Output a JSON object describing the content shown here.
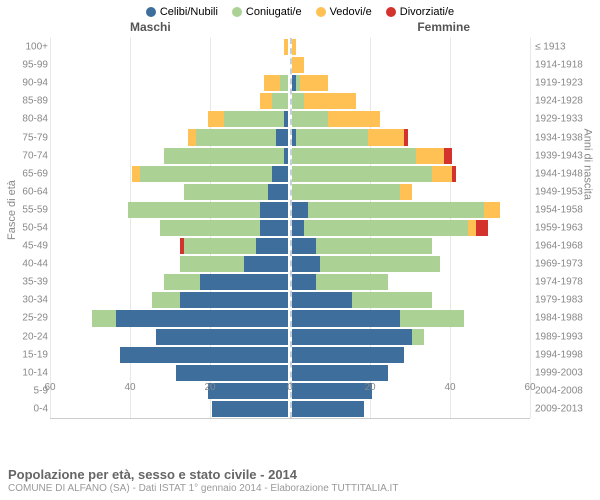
{
  "legend": {
    "items": [
      {
        "label": "Celibi/Nubili",
        "color": "#3d6e9c"
      },
      {
        "label": "Coniugati/e",
        "color": "#abd194"
      },
      {
        "label": "Vedovi/e",
        "color": "#ffc153"
      },
      {
        "label": "Divorziati/e",
        "color": "#d4322c"
      }
    ]
  },
  "gender_labels": {
    "male": "Maschi",
    "female": "Femmine"
  },
  "axis_titles": {
    "left": "Fasce di età",
    "right": "Anni di nascita"
  },
  "x_axis": {
    "max": 60,
    "ticks": [
      60,
      40,
      20,
      0,
      20,
      40,
      60
    ]
  },
  "colors": {
    "celibi": "#3d6e9c",
    "coniugati": "#abd194",
    "vedovi": "#ffc153",
    "divorziati": "#d4322c",
    "grid": "#e8e8e8",
    "center": "#c4cfdc"
  },
  "rows": [
    {
      "age": "100+",
      "birth": "≤ 1913",
      "m": [
        0,
        0,
        1,
        0
      ],
      "f": [
        0,
        0,
        1,
        0
      ]
    },
    {
      "age": "95-99",
      "birth": "1914-1918",
      "m": [
        0,
        0,
        0,
        0
      ],
      "f": [
        0,
        0,
        3,
        0
      ]
    },
    {
      "age": "90-94",
      "birth": "1919-1923",
      "m": [
        0,
        2,
        4,
        0
      ],
      "f": [
        1,
        1,
        7,
        0
      ]
    },
    {
      "age": "85-89",
      "birth": "1924-1928",
      "m": [
        0,
        4,
        3,
        0
      ],
      "f": [
        0,
        3,
        13,
        0
      ]
    },
    {
      "age": "80-84",
      "birth": "1929-1933",
      "m": [
        1,
        15,
        4,
        0
      ],
      "f": [
        0,
        9,
        13,
        0
      ]
    },
    {
      "age": "75-79",
      "birth": "1934-1938",
      "m": [
        3,
        20,
        2,
        0
      ],
      "f": [
        1,
        18,
        9,
        1
      ]
    },
    {
      "age": "70-74",
      "birth": "1939-1943",
      "m": [
        1,
        30,
        0,
        0
      ],
      "f": [
        0,
        31,
        7,
        2
      ]
    },
    {
      "age": "65-69",
      "birth": "1944-1948",
      "m": [
        4,
        33,
        2,
        0
      ],
      "f": [
        0,
        35,
        5,
        1
      ]
    },
    {
      "age": "60-64",
      "birth": "1949-1953",
      "m": [
        5,
        21,
        0,
        0
      ],
      "f": [
        0,
        27,
        3,
        0
      ]
    },
    {
      "age": "55-59",
      "birth": "1954-1958",
      "m": [
        7,
        33,
        0,
        0
      ],
      "f": [
        4,
        44,
        4,
        0
      ]
    },
    {
      "age": "50-54",
      "birth": "1959-1963",
      "m": [
        7,
        25,
        0,
        0
      ],
      "f": [
        3,
        41,
        2,
        3
      ]
    },
    {
      "age": "45-49",
      "birth": "1964-1968",
      "m": [
        8,
        18,
        0,
        1
      ],
      "f": [
        6,
        29,
        0,
        0
      ]
    },
    {
      "age": "40-44",
      "birth": "1969-1973",
      "m": [
        11,
        16,
        0,
        0
      ],
      "f": [
        7,
        30,
        0,
        0
      ]
    },
    {
      "age": "35-39",
      "birth": "1974-1978",
      "m": [
        22,
        9,
        0,
        0
      ],
      "f": [
        6,
        18,
        0,
        0
      ]
    },
    {
      "age": "30-34",
      "birth": "1979-1983",
      "m": [
        27,
        7,
        0,
        0
      ],
      "f": [
        15,
        20,
        0,
        0
      ]
    },
    {
      "age": "25-29",
      "birth": "1984-1988",
      "m": [
        43,
        6,
        0,
        0
      ],
      "f": [
        27,
        16,
        0,
        0
      ]
    },
    {
      "age": "20-24",
      "birth": "1989-1993",
      "m": [
        33,
        0,
        0,
        0
      ],
      "f": [
        30,
        3,
        0,
        0
      ]
    },
    {
      "age": "15-19",
      "birth": "1994-1998",
      "m": [
        42,
        0,
        0,
        0
      ],
      "f": [
        28,
        0,
        0,
        0
      ]
    },
    {
      "age": "10-14",
      "birth": "1999-2003",
      "m": [
        28,
        0,
        0,
        0
      ],
      "f": [
        24,
        0,
        0,
        0
      ]
    },
    {
      "age": "5-9",
      "birth": "2004-2008",
      "m": [
        20,
        0,
        0,
        0
      ],
      "f": [
        20,
        0,
        0,
        0
      ]
    },
    {
      "age": "0-4",
      "birth": "2009-2013",
      "m": [
        19,
        0,
        0,
        0
      ],
      "f": [
        18,
        0,
        0,
        0
      ]
    }
  ],
  "footer": {
    "title": "Popolazione per età, sesso e stato civile - 2014",
    "subtitle": "COMUNE DI ALFANO (SA) - Dati ISTAT 1° gennaio 2014 - Elaborazione TUTTITALIA.IT"
  }
}
